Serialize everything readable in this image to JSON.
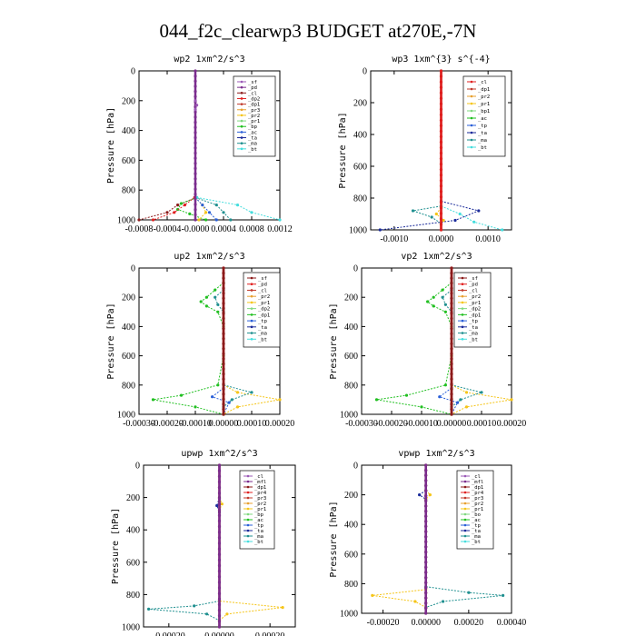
{
  "title": "044_f2c_clearwp3  BUDGET at270E,-7N",
  "chart_data": [
    {
      "id": "wp2",
      "type": "line",
      "title": "wp2  1xm^2/s^3",
      "ylabel": "Pressure [hPa]",
      "xlim": [
        -0.0008,
        0.0012
      ],
      "ylim": [
        1000,
        0
      ],
      "xticks": [
        -0.0008,
        -0.0004,
        0.0,
        0.0004,
        0.0008,
        0.0012
      ],
      "xticklabels": [
        "-0.0008",
        "-0.0004",
        "-0.0000",
        "0.0004",
        "0.0008",
        "0.0012"
      ],
      "yticks": [
        0,
        200,
        400,
        600,
        800,
        1000
      ],
      "legend": [
        "_bt",
        "_ma",
        "_ta",
        "_ac",
        "_bp",
        "_pr1",
        "_pr2",
        "_pr3",
        "_dp1",
        "_dp2",
        "_cl",
        "_pd",
        "_sf"
      ],
      "series": [
        {
          "name": "_dp1",
          "color": "#8b1a1a",
          "y": [
            850,
            900,
            950,
            1000
          ],
          "x": [
            1e-05,
            -0.00025,
            -0.0004,
            -0.0008
          ]
        },
        {
          "name": "_pr1",
          "color": "#22c022",
          "y": [
            850,
            890,
            930,
            960,
            1000
          ],
          "x": [
            2e-05,
            -0.0002,
            -0.00025,
            -8e-05,
            0.00015
          ]
        },
        {
          "name": "_pr2",
          "color": "#f5c518",
          "y": [
            850,
            900,
            950,
            1000
          ],
          "x": [
            0.0,
            0.0001,
            0.00015,
            5e-05
          ]
        },
        {
          "name": "_ac",
          "color": "#2a5fd8",
          "y": [
            850,
            900,
            950,
            1000
          ],
          "x": [
            0.0,
            0.0001,
            0.0002,
            0.0003
          ]
        },
        {
          "name": "_ma",
          "color": "#209090",
          "y": [
            850,
            900,
            950,
            1000
          ],
          "x": [
            0.0,
            0.0003,
            0.0004,
            0.0005
          ]
        },
        {
          "name": "_bt",
          "color": "#44dddd",
          "y": [
            850,
            900,
            950,
            1000
          ],
          "x": [
            2e-05,
            0.0006,
            0.0008,
            0.0012
          ]
        },
        {
          "name": "_cl",
          "color": "#e02020",
          "y": [
            850,
            900,
            950,
            1000
          ],
          "x": [
            -1e-05,
            -0.00015,
            -0.0003,
            -0.0006
          ]
        },
        {
          "name": "_pd",
          "color": "#7b2d8e",
          "y": [
            0,
            1000
          ],
          "x": [
            0.0,
            0.0
          ]
        },
        {
          "name": "_sf",
          "color": "#9b59b6",
          "y": [
            200,
            230,
            260
          ],
          "x": [
            0.0,
            2e-05,
            0.0
          ]
        }
      ]
    },
    {
      "id": "wp3",
      "type": "line",
      "title": "wp3  1xm^{3} s^{-4}",
      "ylabel": "Pressure [hPa]",
      "xlim": [
        -0.0015,
        0.0015
      ],
      "ylim": [
        1000,
        0
      ],
      "xticks": [
        -0.001,
        0.0,
        0.001
      ],
      "xticklabels": [
        "-0.0010",
        "0.0000",
        "0.0010"
      ],
      "yticks": [
        0,
        200,
        400,
        600,
        800,
        1000
      ],
      "legend": [
        "_bt",
        "_ma",
        "_ta",
        "_tp",
        "_ac",
        "_bp1",
        "_pr1",
        "_pr2",
        "_dp1",
        "_cl"
      ],
      "series": [
        {
          "name": "_bt",
          "color": "#44dddd",
          "y": [
            850,
            900,
            950,
            1000
          ],
          "x": [
            0.0,
            0.0004,
            0.0007,
            0.0013
          ]
        },
        {
          "name": "_ta",
          "color": "#1a2a9a",
          "y": [
            820,
            880,
            940,
            1000
          ],
          "x": [
            0.0,
            0.0008,
            0.0003,
            -0.0013
          ]
        },
        {
          "name": "_ma",
          "color": "#209090",
          "y": [
            850,
            880,
            920,
            960
          ],
          "x": [
            0.0,
            -0.0006,
            -0.0002,
            0.0
          ]
        },
        {
          "name": "_pr2",
          "color": "#f5c518",
          "y": [
            860,
            900,
            940
          ],
          "x": [
            0.0,
            -0.0001,
            5e-05
          ]
        },
        {
          "name": "_dp1",
          "color": "#c0392b",
          "y": [
            0,
            1000
          ],
          "x": [
            0.0,
            0.0
          ]
        },
        {
          "name": "_cl",
          "color": "#e02020",
          "y": [
            0,
            1000
          ],
          "x": [
            0.0,
            0.0
          ]
        }
      ]
    },
    {
      "id": "up2",
      "type": "line",
      "title": "up2  1xm^2/s^3",
      "ylabel": "Pressure [hPa]",
      "xlim": [
        -0.0003,
        0.0002
      ],
      "ylim": [
        1000,
        0
      ],
      "xticks": [
        -0.0003,
        -0.0002,
        -0.0001,
        0.0,
        0.0001,
        0.0002
      ],
      "xticklabels": [
        "-0.00030",
        "-0.00020",
        "-0.00010",
        "0.00000",
        "0.00010",
        "0.00020"
      ],
      "yticks": [
        0,
        200,
        400,
        600,
        800,
        1000
      ],
      "legend": [
        "_bt",
        "_ma",
        "_ta",
        "_tp",
        "_dp1",
        "_dp2",
        "_pr1",
        "_pr2",
        "_cl",
        "_pd",
        "_sf"
      ],
      "series": [
        {
          "name": "_pr1",
          "color": "#22c022",
          "y": [
            100,
            150,
            200,
            230,
            260,
            300,
            400,
            600,
            800,
            870,
            900,
            950,
            1000
          ],
          "x": [
            0.0,
            -3e-05,
            -6e-05,
            -8e-05,
            -6e-05,
            -2e-05,
            0.0,
            0.0,
            -2e-05,
            -0.00015,
            -0.00025,
            -0.0001,
            0.0
          ]
        },
        {
          "name": "_pr2",
          "color": "#f5c518",
          "y": [
            800,
            850,
            900,
            950,
            1000
          ],
          "x": [
            0.0,
            5e-05,
            0.0002,
            5e-05,
            0.0
          ]
        },
        {
          "name": "_ma",
          "color": "#209090",
          "y": [
            150,
            200,
            250,
            300,
            800,
            850,
            900,
            950
          ],
          "x": [
            0.0,
            -3e-05,
            -2e-05,
            0.0,
            0.0,
            0.0001,
            3e-05,
            0.0
          ]
        },
        {
          "name": "_tp",
          "color": "#2a5fd8",
          "y": [
            820,
            880,
            920,
            1000
          ],
          "x": [
            0.0,
            -4e-05,
            2e-05,
            0.0
          ]
        },
        {
          "name": "_cl",
          "color": "#e02020",
          "y": [
            0,
            1000
          ],
          "x": [
            0.0,
            0.0
          ]
        },
        {
          "name": "_pd",
          "color": "#8b1a1a",
          "y": [
            0,
            1000
          ],
          "x": [
            0.0,
            0.0
          ]
        }
      ]
    },
    {
      "id": "vp2",
      "type": "line",
      "title": "vp2  1xm^2/s^3",
      "ylabel": "Pressure [hPa]",
      "xlim": [
        -0.0003,
        0.0002
      ],
      "ylim": [
        1000,
        0
      ],
      "xticks": [
        -0.0003,
        -0.0002,
        -0.0001,
        0.0,
        0.0001,
        0.0002
      ],
      "xticklabels": [
        "-0.00030",
        "-0.00020",
        "-0.00010",
        "0.00000",
        "0.00010",
        "0.00020"
      ],
      "yticks": [
        0,
        200,
        400,
        600,
        800,
        1000
      ],
      "legend": [
        "_bt",
        "_ma",
        "_ta",
        "_tp",
        "_dp1",
        "_dp2",
        "_pr1",
        "_pr2",
        "_cl",
        "_pd",
        "_sf"
      ],
      "series": [
        {
          "name": "_pr1",
          "color": "#22c022",
          "y": [
            100,
            150,
            200,
            230,
            260,
            300,
            400,
            600,
            800,
            870,
            900,
            950,
            1000
          ],
          "x": [
            0.0,
            -3e-05,
            -6e-05,
            -8e-05,
            -6e-05,
            -2e-05,
            0.0,
            0.0,
            -2e-05,
            -0.00015,
            -0.00025,
            -0.0001,
            0.0
          ]
        },
        {
          "name": "_pr2",
          "color": "#f5c518",
          "y": [
            800,
            850,
            900,
            950,
            1000
          ],
          "x": [
            0.0,
            5e-05,
            0.0002,
            5e-05,
            0.0
          ]
        },
        {
          "name": "_ma",
          "color": "#209090",
          "y": [
            150,
            200,
            250,
            300,
            800,
            850,
            900,
            950
          ],
          "x": [
            0.0,
            -3e-05,
            -2e-05,
            0.0,
            0.0,
            0.0001,
            3e-05,
            0.0
          ]
        },
        {
          "name": "_tp",
          "color": "#2a5fd8",
          "y": [
            820,
            880,
            920,
            1000
          ],
          "x": [
            0.0,
            -4e-05,
            2e-05,
            0.0
          ]
        },
        {
          "name": "_cl",
          "color": "#e02020",
          "y": [
            0,
            1000
          ],
          "x": [
            0.0,
            0.0
          ]
        },
        {
          "name": "_pd",
          "color": "#8b1a1a",
          "y": [
            0,
            1000
          ],
          "x": [
            0.0,
            0.0
          ]
        }
      ]
    },
    {
      "id": "upwp",
      "type": "line",
      "title": "upwp  1xm^2/s^3",
      "ylabel": "Pressure [hPa]",
      "xlim": [
        -0.0003,
        0.0003
      ],
      "ylim": [
        1000,
        0
      ],
      "xticks": [
        -0.0002,
        0.0,
        0.0002
      ],
      "xticklabels": [
        "-0.00020",
        "0.00000",
        "0.00020"
      ],
      "yticks": [
        0,
        200,
        400,
        600,
        800,
        1000
      ],
      "legend": [
        "_bt",
        "_ma",
        "_ta",
        "_tp",
        "_ac",
        "_bp",
        "_pr1",
        "_pr2",
        "_pr3",
        "_pr4",
        "_dp1",
        "_mfl",
        "_cl"
      ],
      "series": [
        {
          "name": "_ma",
          "color": "#209090",
          "y": [
            840,
            870,
            890,
            920,
            960
          ],
          "x": [
            0.0,
            -0.0001,
            -0.00028,
            -5e-05,
            0.0
          ]
        },
        {
          "name": "_pr1",
          "color": "#f5c518",
          "y": [
            200,
            240,
            280,
            840,
            880,
            920,
            960
          ],
          "x": [
            0.0,
            1e-05,
            0.0,
            0.0,
            0.00025,
            3e-05,
            0.0
          ]
        },
        {
          "name": "_ac",
          "color": "#1a2a9a",
          "y": [
            200,
            250,
            290
          ],
          "x": [
            0.0,
            -1e-05,
            0.0
          ]
        },
        {
          "name": "_cl",
          "color": "#8b1a1a",
          "y": [
            0,
            1000
          ],
          "x": [
            0.0,
            0.0
          ]
        },
        {
          "name": "_mfl",
          "color": "#7b2d8e",
          "y": [
            0,
            1000
          ],
          "x": [
            0.0,
            0.0
          ]
        }
      ]
    },
    {
      "id": "vpwp",
      "type": "line",
      "title": "vpwp  1xm^2/s^3",
      "ylabel": "Pressure [hPa]",
      "xlim": [
        -0.0003,
        0.0004
      ],
      "ylim": [
        1000,
        0
      ],
      "xticks": [
        -0.0002,
        0.0,
        0.0002,
        0.0004
      ],
      "xticklabels": [
        "-0.00020",
        "0.00000",
        "0.00020",
        "0.00040"
      ],
      "yticks": [
        0,
        200,
        400,
        600,
        800,
        1000
      ],
      "legend": [
        "_bt",
        "_ma",
        "_ta",
        "_tp",
        "_ac",
        "_bo",
        "_pr1",
        "_pr2",
        "_pr3",
        "_pr4",
        "_dp1",
        "_mfl",
        "_cl"
      ],
      "series": [
        {
          "name": "_ma",
          "color": "#209090",
          "y": [
            820,
            860,
            880,
            920,
            960
          ],
          "x": [
            0.0,
            0.0002,
            0.00036,
            8e-05,
            0.0
          ]
        },
        {
          "name": "_pr1",
          "color": "#f5c518",
          "y": [
            840,
            880,
            920,
            960
          ],
          "x": [
            0.0,
            -0.00025,
            -5e-05,
            0.0
          ]
        },
        {
          "name": "_ac",
          "color": "#1a2a9a",
          "y": [
            170,
            200,
            230
          ],
          "x": [
            0.0,
            -3e-05,
            0.0
          ]
        },
        {
          "name": "_pr2",
          "color": "#f5c518",
          "y": [
            170,
            200,
            230
          ],
          "x": [
            0.0,
            2e-05,
            0.0
          ]
        },
        {
          "name": "_cl",
          "color": "#8b1a1a",
          "y": [
            0,
            1000
          ],
          "x": [
            0.0,
            0.0
          ]
        },
        {
          "name": "_mfl",
          "color": "#7b2d8e",
          "y": [
            0,
            1000
          ],
          "x": [
            0.0,
            0.0
          ]
        }
      ]
    }
  ]
}
